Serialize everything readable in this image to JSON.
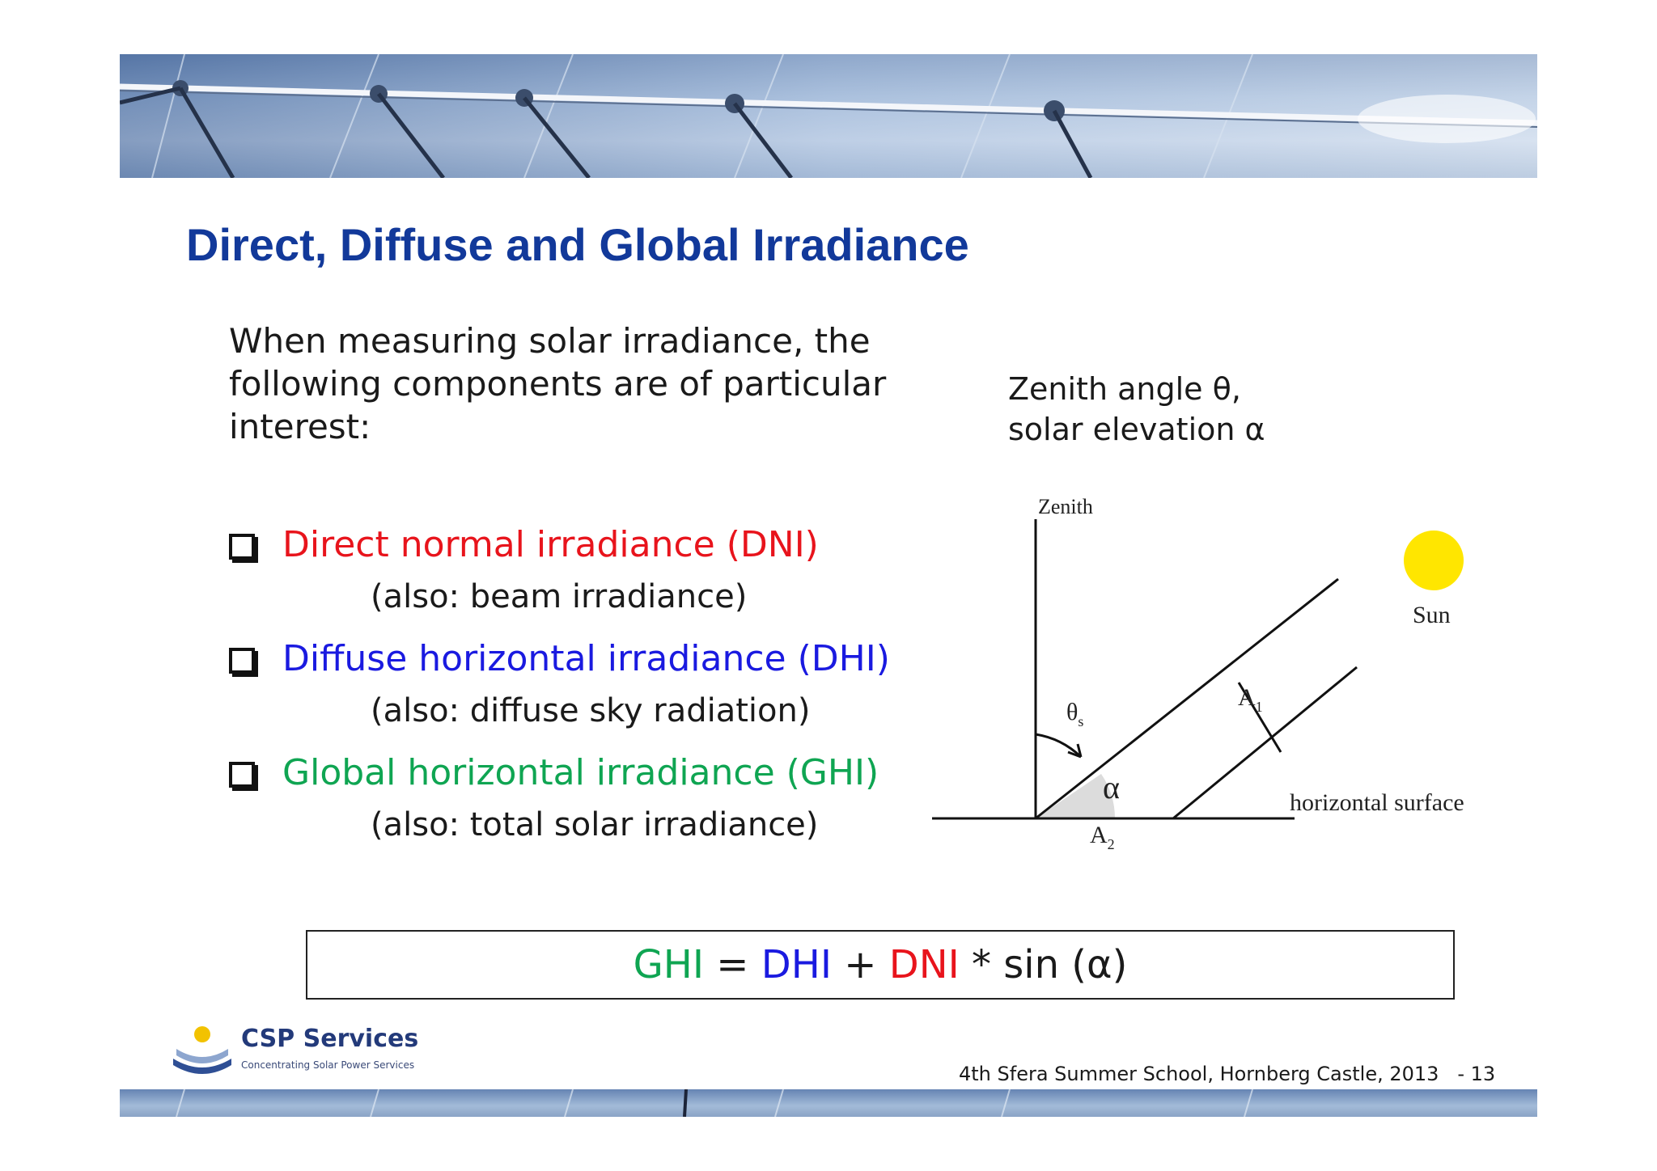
{
  "slide": {
    "title": "Direct, Diffuse and Global Irradiance",
    "intro": "When measuring solar irradiance, the following components are of particular interest:",
    "zenith_line1": "Zenith angle θ,",
    "zenith_line2": "solar elevation α",
    "bullets": [
      {
        "label": "Direct normal irradiance (DNI)",
        "sub": "(also: beam irradiance)",
        "color": "#e8141c"
      },
      {
        "label": "Diffuse horizontal irradiance (DHI)",
        "sub": "(also: diffuse sky radiation)",
        "color": "#1a1ae0"
      },
      {
        "label": "Global horizontal irradiance (GHI)",
        "sub": "(also: total solar irradiance)",
        "color": "#0fa552"
      }
    ],
    "formula": {
      "ghi": "GHI",
      "eq": " = ",
      "dhi": "DHI",
      "plus": " + ",
      "dni": "DNI",
      "rest": " * sin (α)"
    }
  },
  "diagram": {
    "zenith": "Zenith",
    "sun": "Sun",
    "theta": "θ",
    "theta_sub": "s",
    "alpha": "α",
    "a1": "A",
    "a1_sub": "1",
    "a2": "A",
    "a2_sub": "2",
    "horizontal": "horizontal surface"
  },
  "logo": {
    "name": "CSP Services",
    "tagline": "Concentrating Solar Power Services"
  },
  "footer": {
    "event": "4th Sfera Summer School, Hornberg Castle, 2013",
    "page": "- 13"
  },
  "colors": {
    "title": "#12399a",
    "dni": "#e8141c",
    "dhi": "#1a1ae0",
    "ghi": "#0fa552",
    "sun": "#ffe600"
  }
}
